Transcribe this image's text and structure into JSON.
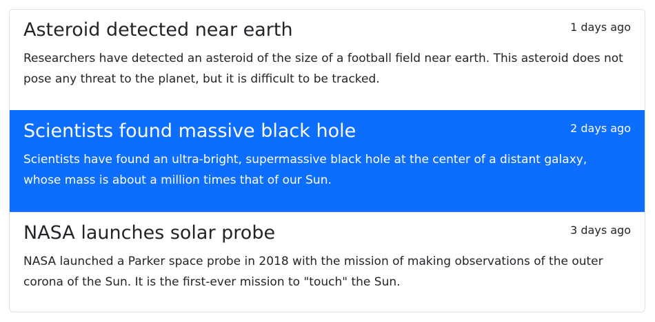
{
  "colors": {
    "active_bg": "#0d6efd",
    "text": "#212529",
    "border": "#dee2e6"
  },
  "items": [
    {
      "title": "Asteroid detected near earth",
      "time": "1 days ago",
      "description": "Researchers have detected an asteroid of the size of a football field near earth. This asteroid does not pose any threat to the planet, but it is difficult to be tracked.",
      "active": false
    },
    {
      "title": "Scientists found massive black hole",
      "time": "2 days ago",
      "description": "Scientists have found an ultra-bright, supermassive black hole at the center of a distant galaxy, whose mass is about a million times that of our Sun.",
      "active": true
    },
    {
      "title": "NASA launches solar probe",
      "time": "3 days ago",
      "description": "NASA launched a Parker space probe in 2018 with the mission of making observations of the outer corona of the Sun. It is the first-ever mission to \"touch\" the Sun.",
      "active": false
    }
  ]
}
